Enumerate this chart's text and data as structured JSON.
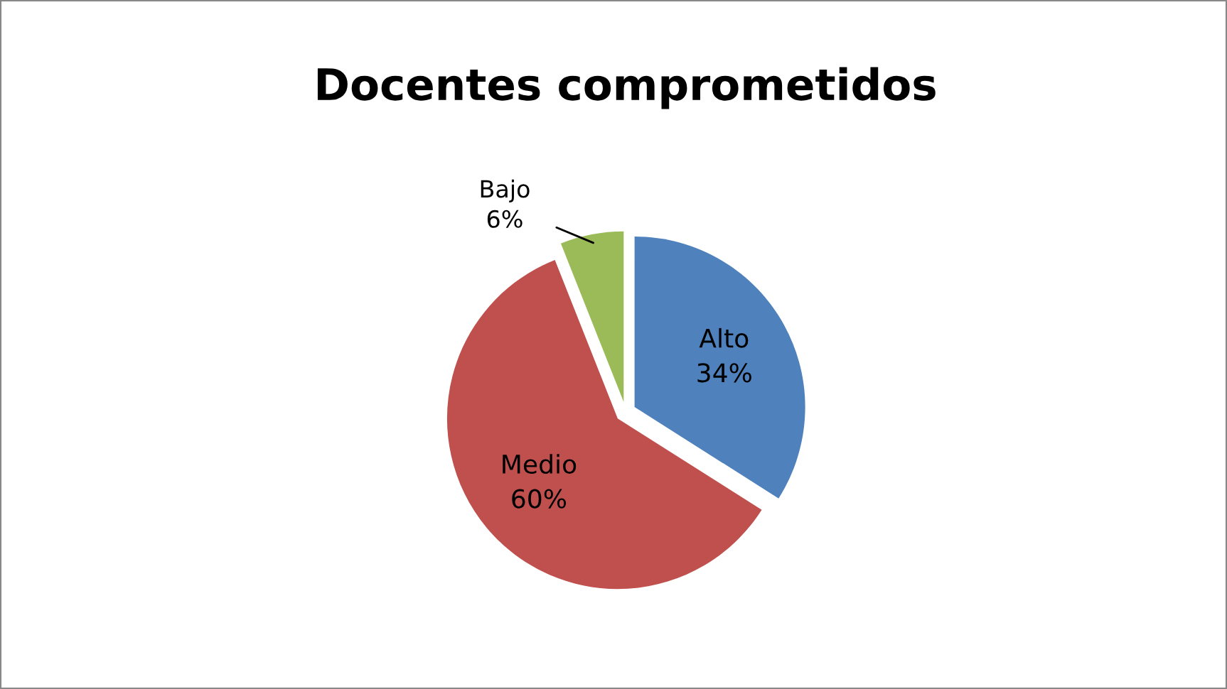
{
  "chart_data": {
    "type": "pie",
    "title": "Docentes comprometidos",
    "categories": [
      "Alto",
      "Medio",
      "Bajo"
    ],
    "values": [
      34,
      60,
      6
    ],
    "colors": [
      "#4f81bd",
      "#c0504d",
      "#9bbb59"
    ],
    "value_labels": [
      "34%",
      "60%",
      "6%"
    ]
  }
}
